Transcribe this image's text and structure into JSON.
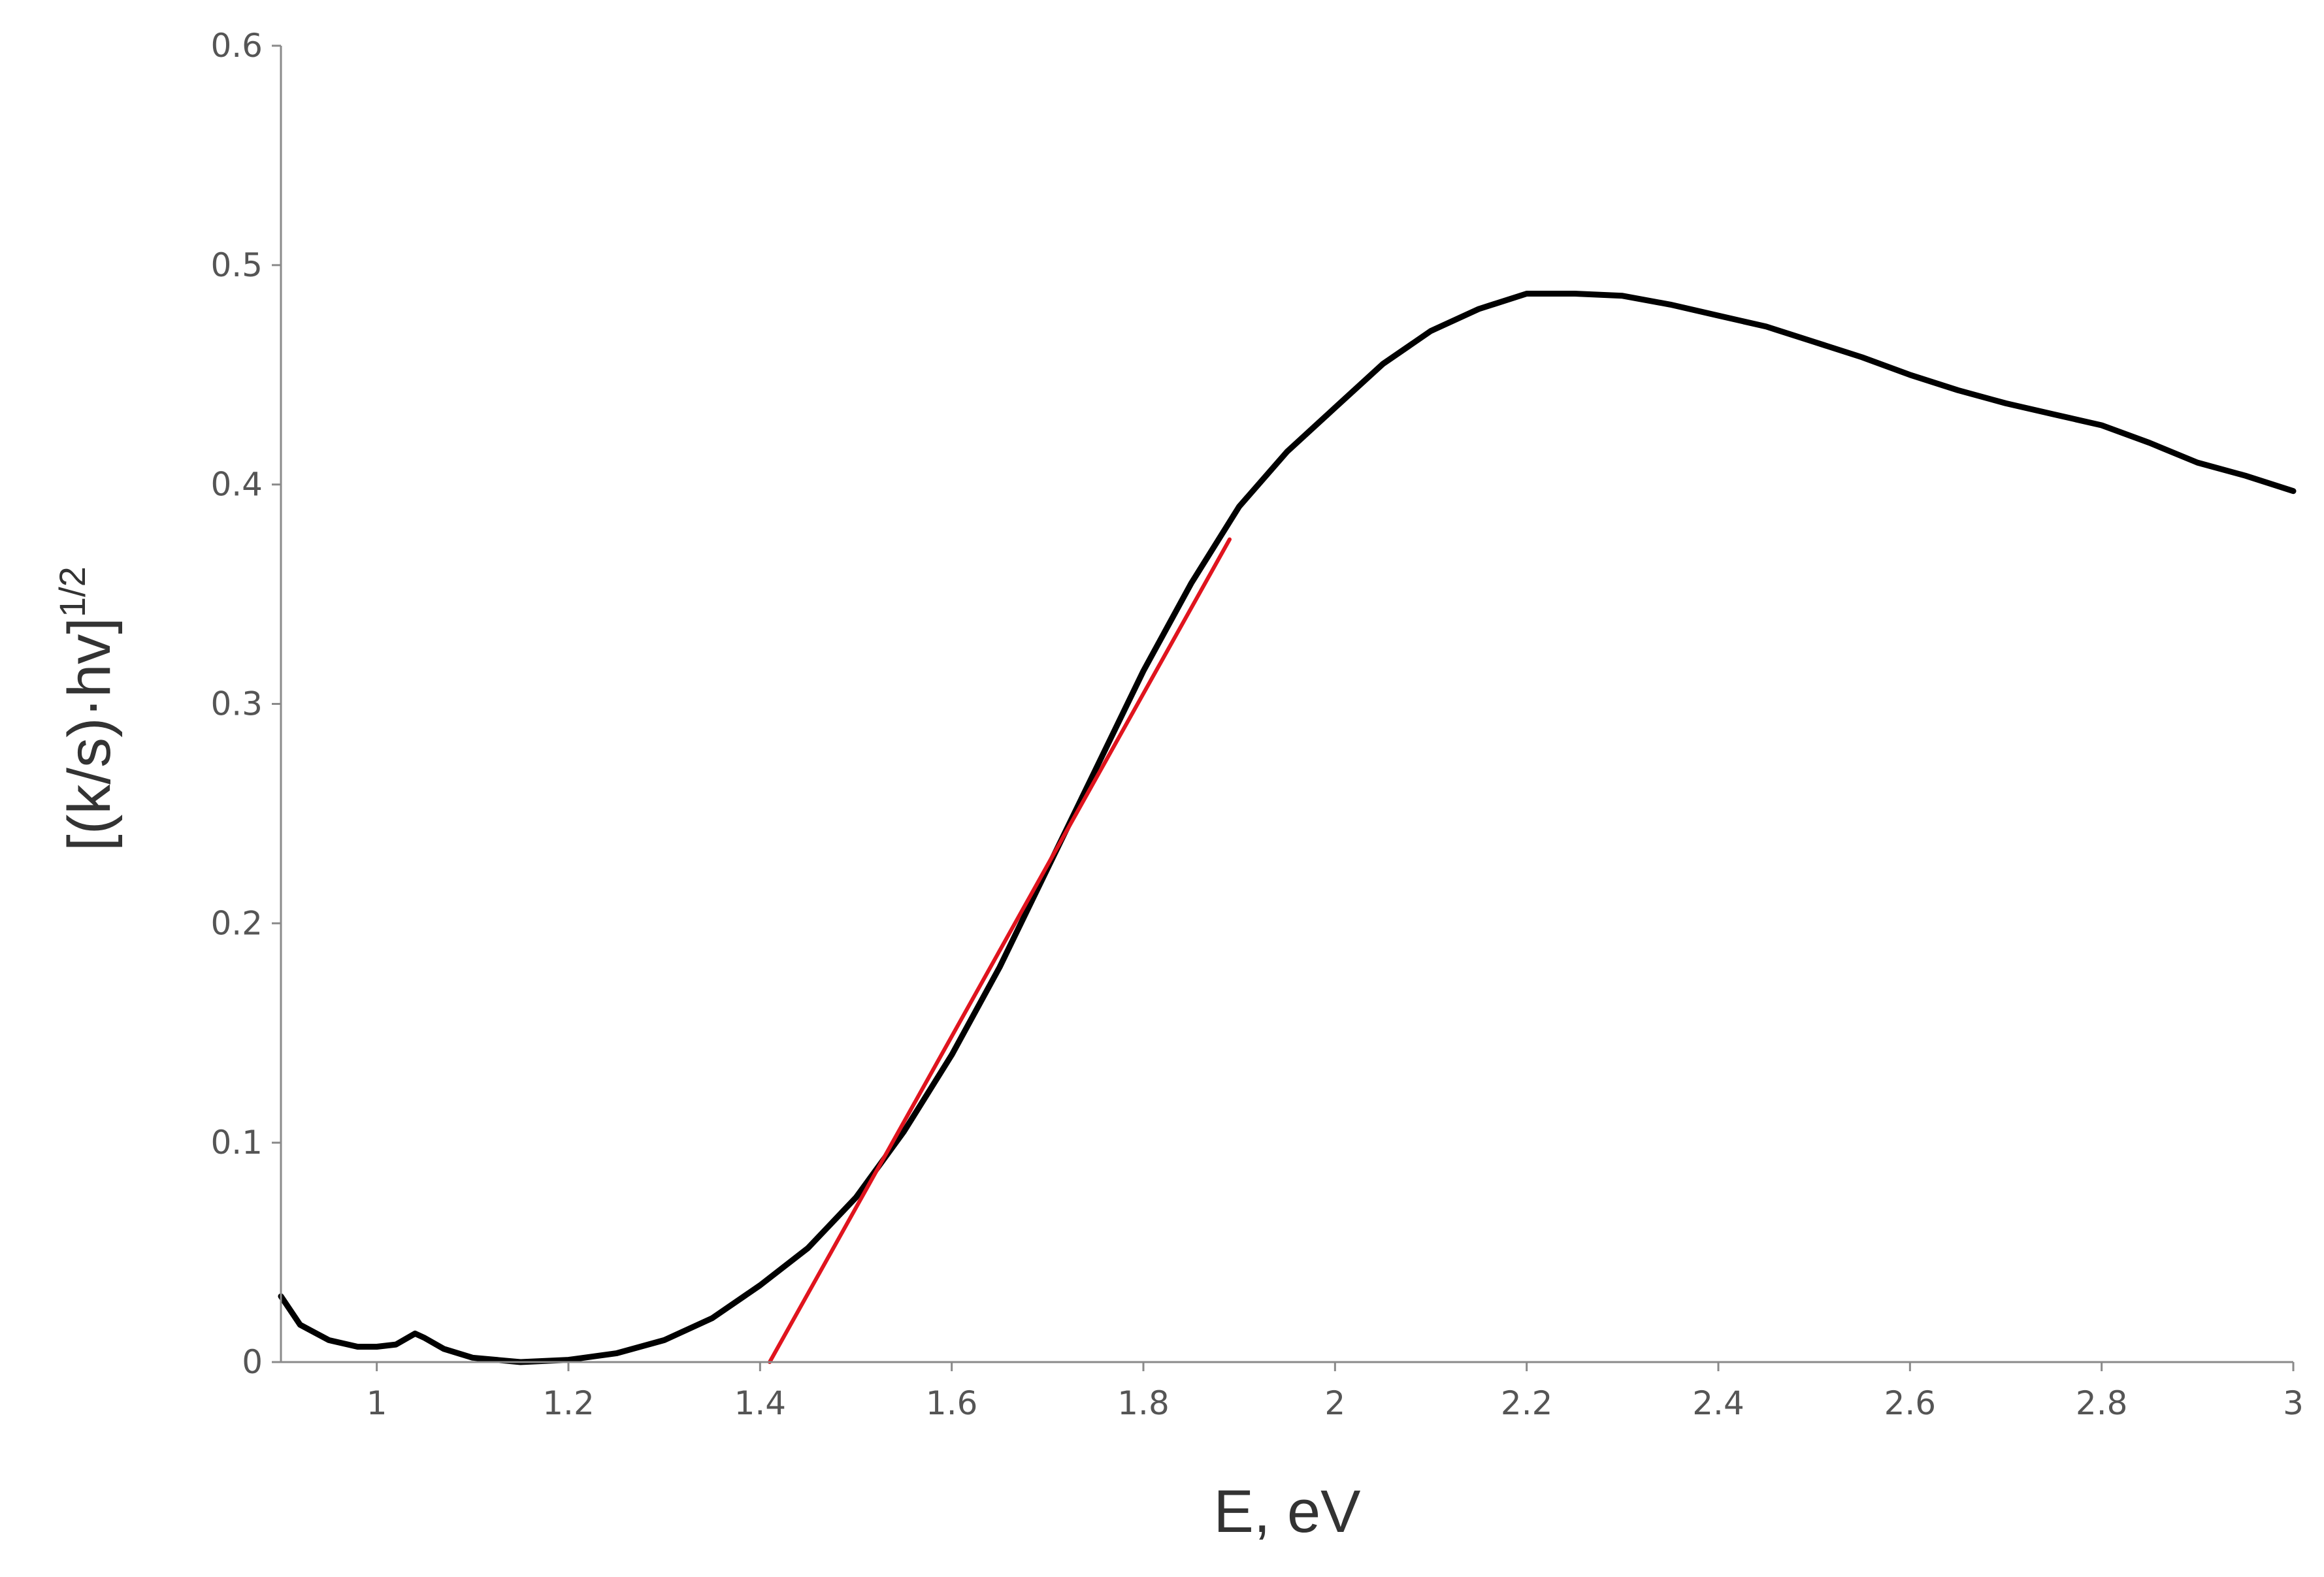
{
  "chart_data": {
    "type": "line",
    "title": "",
    "xlabel": "E, eV",
    "ylabel": "[(k/s)·hv]",
    "ylabel_superscript": "1/2",
    "xlim": [
      0.9,
      3.0
    ],
    "ylim": [
      0,
      0.6
    ],
    "xticks": [
      1,
      1.2,
      1.4,
      1.6,
      1.8,
      2,
      2.2,
      2.4,
      2.6,
      2.8,
      3
    ],
    "yticks": [
      0,
      0.1,
      0.2,
      0.3,
      0.4,
      0.5,
      0.6
    ],
    "xtick_labels": [
      "1",
      "1.2",
      "1.4",
      "1.6",
      "1.8",
      "2",
      "2.2",
      "2.4",
      "2.6",
      "2.8",
      "3"
    ],
    "ytick_labels": [
      "0",
      "0.1",
      "0.2",
      "0.3",
      "0.4",
      "0.5",
      "0.6"
    ],
    "grid": false,
    "series": [
      {
        "color": "#000000",
        "x": [
          0.9,
          0.92,
          0.95,
          0.98,
          1.0,
          1.02,
          1.04,
          1.05,
          1.07,
          1.1,
          1.15,
          1.2,
          1.25,
          1.3,
          1.35,
          1.4,
          1.45,
          1.5,
          1.55,
          1.6,
          1.65,
          1.7,
          1.75,
          1.8,
          1.85,
          1.9,
          1.95,
          2.0,
          2.05,
          2.1,
          2.15,
          2.2,
          2.25,
          2.3,
          2.35,
          2.4,
          2.45,
          2.5,
          2.55,
          2.6,
          2.65,
          2.7,
          2.75,
          2.8,
          2.85,
          2.9,
          2.95,
          3.0
        ],
        "y": [
          0.03,
          0.017,
          0.01,
          0.007,
          0.007,
          0.008,
          0.013,
          0.011,
          0.006,
          0.002,
          0.0,
          0.001,
          0.004,
          0.01,
          0.02,
          0.035,
          0.052,
          0.075,
          0.105,
          0.14,
          0.18,
          0.225,
          0.27,
          0.315,
          0.355,
          0.39,
          0.415,
          0.435,
          0.455,
          0.47,
          0.48,
          0.487,
          0.487,
          0.486,
          0.482,
          0.477,
          0.472,
          0.465,
          0.458,
          0.45,
          0.443,
          0.437,
          0.432,
          0.427,
          0.419,
          0.41,
          0.404,
          0.397
        ]
      },
      {
        "color": "#e0141e",
        "x": [
          1.41,
          1.89
        ],
        "y": [
          0.0,
          0.375
        ]
      }
    ]
  }
}
